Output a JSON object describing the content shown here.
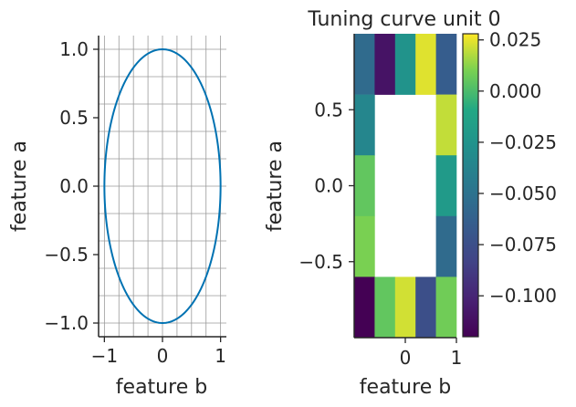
{
  "chart_data": [
    {
      "type": "line",
      "title": "",
      "xlabel": "feature b",
      "ylabel": "feature a",
      "xlim": [
        -1.1,
        1.1
      ],
      "ylim": [
        -1.1,
        1.1
      ],
      "xticks": [
        -1,
        0,
        1
      ],
      "xtick_labels": [
        "−1",
        "0",
        "1"
      ],
      "yticks": [
        -1.0,
        -0.5,
        0.0,
        0.5,
        1.0
      ],
      "ytick_labels": [
        "−1.0",
        "−0.5",
        "0.0",
        "0.5",
        "1.0"
      ],
      "grid": true,
      "series": [
        {
          "shape": "unit circle",
          "x": "cos(t)",
          "y": "sin(t)",
          "color": "#0072b2"
        }
      ]
    },
    {
      "type": "heatmap",
      "title": "Tuning curve unit 0",
      "xlabel": "feature b",
      "ylabel": "feature a",
      "xticks": [
        0,
        1
      ],
      "xtick_labels": [
        "0",
        "1"
      ],
      "yticks": [
        -0.5,
        0.0,
        0.5
      ],
      "ytick_labels": [
        "−0.5",
        "0.0",
        "0.5"
      ],
      "colormap": "viridis",
      "color_range": [
        -0.12,
        0.028
      ],
      "colorbar_ticks": [
        0.025,
        0.0,
        -0.025,
        -0.05,
        -0.075,
        -0.1
      ],
      "colorbar_tick_labels": [
        "0.025",
        "0.000",
        "−0.025",
        "−0.050",
        "−0.075",
        "−0.100"
      ],
      "rows_top_to_bottom": [
        [
          -0.055,
          -0.11,
          -0.025,
          0.024,
          -0.065
        ],
        [
          -0.035,
          null,
          null,
          null,
          0.02
        ],
        [
          0.005,
          null,
          null,
          null,
          -0.02
        ],
        [
          0.01,
          null,
          null,
          null,
          -0.055
        ],
        [
          -0.12,
          0.005,
          0.022,
          -0.075,
          0.008
        ]
      ]
    }
  ]
}
